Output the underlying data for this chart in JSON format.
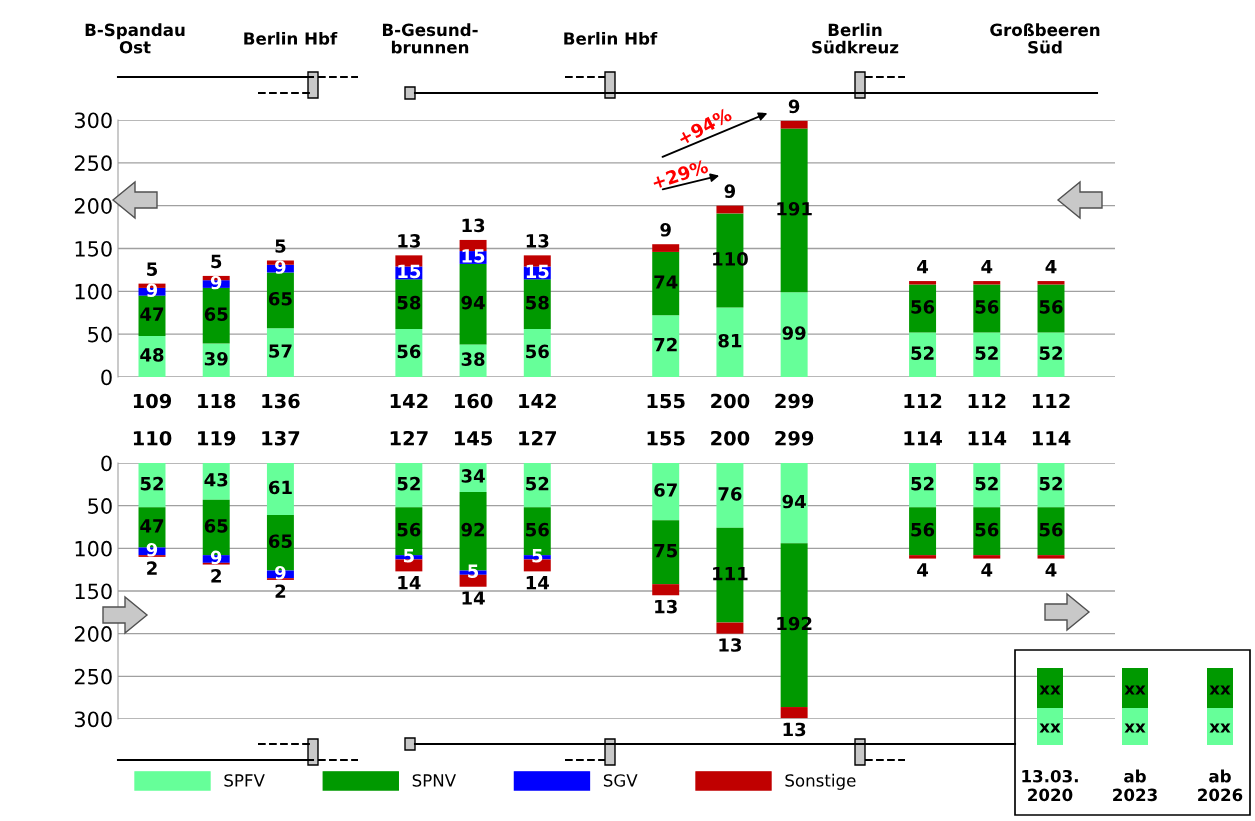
{
  "chart_data": [
    {
      "type": "bar",
      "stacked": true,
      "categories": [
        null,
        null,
        null,
        null,
        null,
        null,
        null,
        null,
        null,
        null,
        null,
        null,
        null,
        null,
        null
      ],
      "series": [
        {
          "color": "#66ff99",
          "values": [
            48,
            39,
            57,
            null,
            56,
            38,
            56,
            null,
            72,
            81,
            99,
            null,
            52,
            52,
            52
          ]
        },
        {
          "color": "#009900",
          "values": [
            47,
            65,
            65,
            null,
            58,
            94,
            58,
            null,
            74,
            110,
            191,
            null,
            56,
            56,
            56
          ]
        },
        {
          "color": "#0000ff",
          "values": [
            9,
            9,
            9,
            null,
            15,
            15,
            15,
            null,
            null,
            null,
            null,
            null,
            null,
            null,
            null
          ]
        },
        {
          "color": "#c00000",
          "values": [
            5,
            5,
            5,
            null,
            13,
            13,
            13,
            null,
            9,
            9,
            9,
            null,
            4,
            4,
            4
          ]
        }
      ],
      "totals": [
        "109",
        "118",
        "136",
        null,
        "142",
        "160",
        "142",
        null,
        "155",
        "200",
        "299",
        null,
        "112",
        "112",
        "112"
      ],
      "ylim": [
        0,
        300
      ],
      "yticks": [
        0,
        50,
        100,
        150,
        200,
        250,
        300
      ],
      "grid": "y",
      "tick_labels": "y",
      "data_labels": true,
      "legend": false,
      "annotations": [
        "B-Spandau\nOst",
        "Berlin Hbf",
        "B-Gesund-\nbrunnen",
        "Berlin Hbf",
        "Berlin\nSüdkreuz",
        "Großbeeren\nSüd",
        "+29%",
        "+94%"
      ]
    },
    {
      "type": "bar",
      "stacked": true,
      "categories": [
        null,
        null,
        null,
        null,
        null,
        null,
        null,
        null,
        null,
        null,
        null,
        null,
        null,
        null,
        null
      ],
      "series": [
        {
          "name": "SPFV",
          "color": "#66ff99",
          "values": [
            52,
            43,
            61,
            null,
            52,
            34,
            52,
            null,
            67,
            76,
            94,
            null,
            52,
            52,
            52
          ]
        },
        {
          "name": "SPNV",
          "color": "#009900",
          "values": [
            47,
            65,
            65,
            null,
            56,
            92,
            56,
            null,
            75,
            111,
            192,
            null,
            56,
            56,
            56
          ]
        },
        {
          "name": "SGV",
          "color": "#0000ff",
          "values": [
            9,
            9,
            9,
            null,
            5,
            5,
            5,
            null,
            null,
            null,
            null,
            null,
            null,
            null,
            null
          ]
        },
        {
          "name": "Sonstige",
          "color": "#c00000",
          "values": [
            2,
            2,
            2,
            null,
            14,
            14,
            14,
            null,
            13,
            13,
            13,
            null,
            4,
            4,
            4
          ]
        }
      ],
      "totals": [
        "110",
        "119",
        "137",
        null,
        "127",
        "145",
        "127",
        null,
        "155",
        "200",
        "299",
        null,
        "114",
        "114",
        "114"
      ],
      "ylim": [
        300,
        0
      ],
      "yticks": [
        0,
        50,
        100,
        150,
        200,
        250,
        300
      ],
      "grid": "y",
      "tick_labels": "y",
      "data_labels": true,
      "legend": "bottom",
      "annotations": [
        "xx",
        "xx",
        "xx",
        "xx",
        "xx",
        "xx",
        "13.03.\n2020",
        "ab\n2023",
        "ab\n2026"
      ]
    }
  ]
}
